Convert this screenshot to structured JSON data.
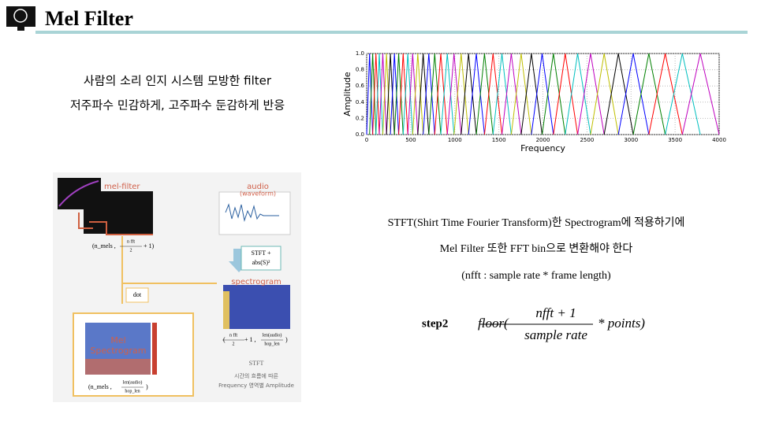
{
  "header": {
    "title": "Mel Filter"
  },
  "intro": [
    "사람의 소리 인지 시스템 모방한 filter",
    "저주파수 민감하게, 고주파수 둔감하게 반응"
  ],
  "chart_data": {
    "type": "filterbank",
    "xlabel": "Frequency",
    "ylabel": "Amplitude",
    "xlim": [
      0,
      4000
    ],
    "ylim": [
      0,
      1
    ],
    "xticks": [
      0,
      500,
      1000,
      1500,
      2000,
      2500,
      3000,
      3500,
      4000
    ],
    "yticks": [
      {
        "value": 0,
        "label": "0.0"
      },
      {
        "value": 0.2,
        "label": "0.2"
      },
      {
        "value": 0.4,
        "label": "0.4"
      },
      {
        "value": 0.6,
        "label": "0.6"
      },
      {
        "value": 0.8,
        "label": "0.8"
      },
      {
        "value": 1,
        "label": "1.0"
      }
    ],
    "grid": true,
    "peak": 1,
    "filter_points": [
      0,
      33,
      68,
      105,
      143,
      183,
      225,
      269,
      315,
      363,
      414,
      467,
      522,
      580,
      641,
      705,
      772,
      841,
      915,
      991,
      1072,
      1156,
      1244,
      1337,
      1434,
      1535,
      1641,
      1753,
      1869,
      1991,
      2119,
      2253,
      2394,
      2541,
      2695,
      2856,
      3025,
      3202,
      3388,
      3582,
      3786,
      4000
    ],
    "colors": [
      "#0000ff",
      "#008000",
      "#ff0000",
      "#00bfbf",
      "#bf00bf",
      "#bfbf00",
      "#000000"
    ]
  },
  "diagram": {
    "mel_filter": "mel-filter",
    "audio": "audio",
    "waveform": "(waveform)",
    "stft_op": [
      "STFT +",
      "abs(S)²"
    ],
    "spectrogram": "spectrogram",
    "dot": "dot",
    "mel_spectrogram": [
      "Mel",
      "Spectrogram"
    ],
    "mel_filter_shape": [
      "(n_mels ,",
      "n fft",
      "2",
      "+ 1)"
    ],
    "spectrogram_shape": [
      "(",
      "n fft",
      "2",
      "+ 1 ,",
      "len(audio)",
      "hop_len",
      ")"
    ],
    "mel_shape": [
      "(n_mels ,",
      "len(audio)",
      "hop_len",
      ")"
    ],
    "caption": [
      "STFT",
      "시간의 흐름에 따른",
      "Frequency 영역별 Amplitude"
    ]
  },
  "body": [
    "STFT(Shirt Time Fourier Transform)한 Spectrogram에 적용하기에",
    "Mel Filter 또한 FFT bin으로 변환해야 한다",
    "(nfft : sample rate * frame length)"
  ],
  "formula": {
    "step": "step2",
    "prefix": "floor(",
    "numerator": "nfft + 1",
    "denominator": "sample rate",
    "suffix": "* points)"
  }
}
